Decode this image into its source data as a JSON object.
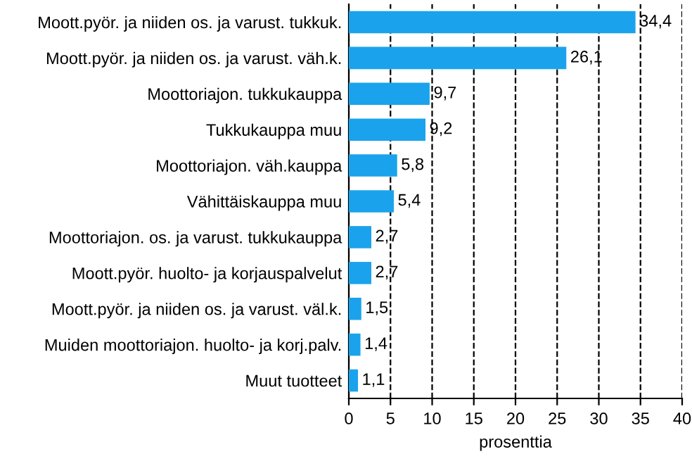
{
  "chart_data": {
    "type": "bar",
    "orientation": "horizontal",
    "xlabel": "prosenttia",
    "categories": [
      "Moott.pyör. ja niiden os. ja varust. tukkuk.",
      "Moott.pyör. ja niiden os. ja varust. väh.k.",
      "Moottoriajon. tukkukauppa",
      "Tukkukauppa muu",
      "Moottoriajon. väh.kauppa",
      "Vähittäiskauppa muu",
      "Moottoriajon. os. ja varust. tukkukauppa",
      "Moott.pyör. huolto- ja korjauspalvelut",
      "Moott.pyör. ja niiden os. ja varust. väl.k.",
      "Muiden moottoriajon. huolto- ja korj.palv.",
      "Muut tuotteet"
    ],
    "values": [
      34.4,
      26.1,
      9.7,
      9.2,
      5.8,
      5.4,
      2.7,
      2.7,
      1.5,
      1.4,
      1.1
    ],
    "value_labels": [
      "34,4",
      "26,1",
      "9,7",
      "9,2",
      "5,8",
      "5,4",
      "2,7",
      "2,7",
      "1,5",
      "1,4",
      "1,1"
    ],
    "color": "#1aa3ec",
    "xlim": [
      0,
      40
    ],
    "xticks": [
      0,
      5,
      10,
      15,
      20,
      25,
      30,
      35,
      40
    ],
    "grid": "x",
    "line_style": "dashed",
    "legend": false
  }
}
